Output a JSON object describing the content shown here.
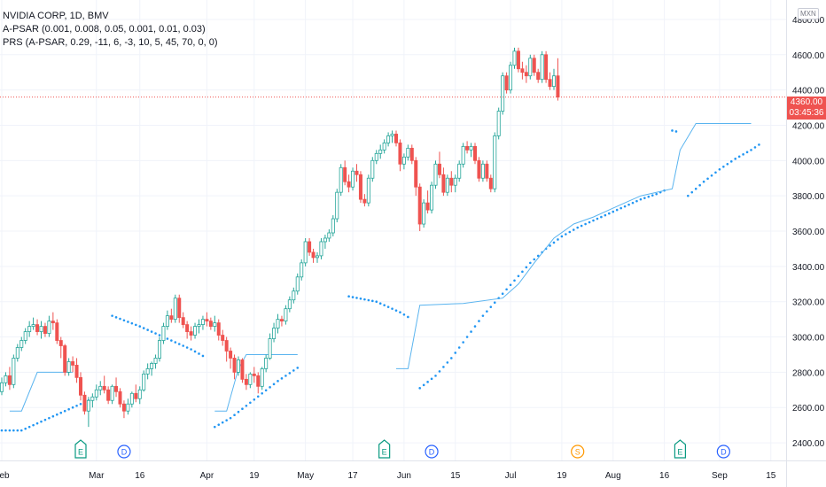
{
  "legend": {
    "symbol_line": "NVIDIA CORP, 1D, BMV",
    "indicator1": "A-PSAR (0.001, 0.008, 0.05, 0.001, 0.01, 0.03)",
    "indicator2": "PRS (A-PSAR, 0.29, -11, 6, -3, 10, 5, 45, 70, 0, 0)"
  },
  "currency_label": "MXN",
  "current_price": {
    "label": "4360.00",
    "countdown": "03:45:36"
  },
  "colors": {
    "up": "#26a69a",
    "down": "#ef5350",
    "psar": "#2196f3",
    "prs": "#5ab4ef",
    "event_earnings": "#089981",
    "event_dividend": "#2962ff",
    "event_split": "#ff9800"
  },
  "chart_data": {
    "type": "candlestick",
    "ylim": [
      2300,
      4880
    ],
    "yticks": [
      2400,
      2600,
      2800,
      3000,
      3200,
      3400,
      3600,
      3800,
      4000,
      4200,
      4400,
      4600,
      4800
    ],
    "ytick_labels": [
      "2400.00",
      "2600.00",
      "2800.00",
      "3000.00",
      "3200.00",
      "3400.00",
      "3600.00",
      "3800.00",
      "4000.00",
      "4200.00",
      "4400.00",
      "4600.00",
      "4800.00"
    ],
    "xtick_labels": [
      "Feb",
      "Mar",
      "16",
      "Apr",
      "19",
      "May",
      "17",
      "Jun",
      "15",
      "Jul",
      "19",
      "Aug",
      "16",
      "Sep",
      "15"
    ],
    "grid": true,
    "ohlc": [
      [
        2690,
        2770,
        2670,
        2740
      ],
      [
        2740,
        2800,
        2720,
        2780
      ],
      [
        2780,
        2830,
        2700,
        2730
      ],
      [
        2730,
        2900,
        2710,
        2880
      ],
      [
        2880,
        2960,
        2860,
        2940
      ],
      [
        2940,
        3000,
        2920,
        2980
      ],
      [
        2980,
        3050,
        2960,
        3030
      ],
      [
        3030,
        3090,
        3000,
        3060
      ],
      [
        3060,
        3110,
        3040,
        3070
      ],
      [
        3070,
        3100,
        3010,
        3030
      ],
      [
        3030,
        3090,
        2990,
        3060
      ],
      [
        3060,
        3080,
        3000,
        3020
      ],
      [
        3020,
        3120,
        3000,
        3090
      ],
      [
        3090,
        3140,
        3040,
        3080
      ],
      [
        3080,
        3100,
        2960,
        2980
      ],
      [
        2980,
        3000,
        2880,
        2950
      ],
      [
        2950,
        2960,
        2780,
        2800
      ],
      [
        2800,
        2880,
        2780,
        2860
      ],
      [
        2860,
        2890,
        2800,
        2840
      ],
      [
        2840,
        2880,
        2740,
        2770
      ],
      [
        2770,
        2800,
        2640,
        2670
      ],
      [
        2670,
        2690,
        2560,
        2580
      ],
      [
        2580,
        2660,
        2490,
        2640
      ],
      [
        2640,
        2680,
        2600,
        2660
      ],
      [
        2660,
        2730,
        2640,
        2700
      ],
      [
        2700,
        2750,
        2670,
        2720
      ],
      [
        2720,
        2780,
        2680,
        2700
      ],
      [
        2700,
        2720,
        2620,
        2640
      ],
      [
        2640,
        2730,
        2620,
        2720
      ],
      [
        2720,
        2770,
        2660,
        2690
      ],
      [
        2690,
        2710,
        2600,
        2620
      ],
      [
        2620,
        2640,
        2540,
        2580
      ],
      [
        2580,
        2650,
        2560,
        2620
      ],
      [
        2620,
        2690,
        2600,
        2680
      ],
      [
        2680,
        2730,
        2630,
        2650
      ],
      [
        2650,
        2720,
        2620,
        2700
      ],
      [
        2700,
        2810,
        2690,
        2790
      ],
      [
        2790,
        2850,
        2760,
        2820
      ],
      [
        2820,
        2860,
        2780,
        2850
      ],
      [
        2850,
        2900,
        2820,
        2880
      ],
      [
        2880,
        3000,
        2860,
        2980
      ],
      [
        2980,
        3080,
        2960,
        3060
      ],
      [
        3060,
        3150,
        3040,
        3120
      ],
      [
        3120,
        3160,
        3080,
        3100
      ],
      [
        3100,
        3240,
        3080,
        3220
      ],
      [
        3220,
        3240,
        3080,
        3110
      ],
      [
        3110,
        3140,
        3050,
        3070
      ],
      [
        3070,
        3090,
        2990,
        3030
      ],
      [
        3030,
        3060,
        2980,
        3010
      ],
      [
        3010,
        3080,
        2990,
        3060
      ],
      [
        3060,
        3100,
        3020,
        3070
      ],
      [
        3070,
        3120,
        3040,
        3100
      ],
      [
        3100,
        3140,
        3060,
        3090
      ],
      [
        3090,
        3110,
        3040,
        3060
      ],
      [
        3060,
        3120,
        3030,
        3080
      ],
      [
        3080,
        3100,
        2980,
        3010
      ],
      [
        3010,
        3040,
        2950,
        2980
      ],
      [
        2980,
        3000,
        2860,
        2920
      ],
      [
        2920,
        2940,
        2820,
        2880
      ],
      [
        2880,
        2900,
        2760,
        2800
      ],
      [
        2800,
        2890,
        2780,
        2870
      ],
      [
        2870,
        2880,
        2740,
        2760
      ],
      [
        2760,
        2790,
        2700,
        2730
      ],
      [
        2730,
        2800,
        2710,
        2790
      ],
      [
        2790,
        2830,
        2740,
        2780
      ],
      [
        2780,
        2800,
        2680,
        2720
      ],
      [
        2720,
        2830,
        2700,
        2820
      ],
      [
        2820,
        2900,
        2800,
        2880
      ],
      [
        2880,
        3020,
        2870,
        2990
      ],
      [
        2990,
        3080,
        2970,
        3050
      ],
      [
        3050,
        3130,
        3020,
        3100
      ],
      [
        3100,
        3120,
        3060,
        3090
      ],
      [
        3090,
        3180,
        3070,
        3160
      ],
      [
        3160,
        3230,
        3140,
        3210
      ],
      [
        3210,
        3280,
        3190,
        3260
      ],
      [
        3260,
        3360,
        3240,
        3340
      ],
      [
        3340,
        3440,
        3320,
        3420
      ],
      [
        3420,
        3560,
        3400,
        3540
      ],
      [
        3540,
        3560,
        3460,
        3480
      ],
      [
        3480,
        3500,
        3420,
        3450
      ],
      [
        3450,
        3480,
        3420,
        3460
      ],
      [
        3460,
        3560,
        3440,
        3540
      ],
      [
        3540,
        3580,
        3500,
        3560
      ],
      [
        3560,
        3610,
        3540,
        3590
      ],
      [
        3590,
        3690,
        3570,
        3670
      ],
      [
        3670,
        3840,
        3650,
        3820
      ],
      [
        3820,
        3980,
        3800,
        3960
      ],
      [
        3960,
        4000,
        3860,
        3880
      ],
      [
        3880,
        3920,
        3820,
        3850
      ],
      [
        3850,
        3960,
        3830,
        3940
      ],
      [
        3940,
        3980,
        3880,
        3920
      ],
      [
        3920,
        3940,
        3760,
        3780
      ],
      [
        3780,
        3810,
        3740,
        3760
      ],
      [
        3760,
        3920,
        3740,
        3900
      ],
      [
        3900,
        4020,
        3880,
        4000
      ],
      [
        4000,
        4060,
        3980,
        4040
      ],
      [
        4040,
        4090,
        4010,
        4060
      ],
      [
        4060,
        4120,
        4040,
        4100
      ],
      [
        4100,
        4160,
        4080,
        4140
      ],
      [
        4140,
        4170,
        4100,
        4150
      ],
      [
        4150,
        4170,
        4080,
        4100
      ],
      [
        4100,
        4120,
        3940,
        3980
      ],
      [
        3980,
        4040,
        3950,
        4020
      ],
      [
        4020,
        4090,
        4000,
        4070
      ],
      [
        4070,
        4090,
        3980,
        4000
      ],
      [
        4000,
        4020,
        3800,
        3850
      ],
      [
        3850,
        3870,
        3600,
        3640
      ],
      [
        3640,
        3780,
        3620,
        3760
      ],
      [
        3760,
        3830,
        3700,
        3720
      ],
      [
        3720,
        3880,
        3700,
        3860
      ],
      [
        3860,
        4000,
        3840,
        3980
      ],
      [
        3980,
        4050,
        3900,
        3920
      ],
      [
        3920,
        3960,
        3800,
        3820
      ],
      [
        3820,
        3920,
        3800,
        3900
      ],
      [
        3900,
        3940,
        3820,
        3860
      ],
      [
        3860,
        3920,
        3820,
        3900
      ],
      [
        3900,
        4000,
        3880,
        3980
      ],
      [
        3980,
        4100,
        3960,
        4080
      ],
      [
        4080,
        4110,
        4040,
        4060
      ],
      [
        4060,
        4100,
        4020,
        4080
      ],
      [
        4080,
        4100,
        3980,
        4000
      ],
      [
        4000,
        4020,
        3880,
        3900
      ],
      [
        3900,
        4000,
        3880,
        3980
      ],
      [
        3980,
        4000,
        3880,
        3900
      ],
      [
        3900,
        3920,
        3820,
        3840
      ],
      [
        3840,
        4160,
        3820,
        4140
      ],
      [
        4140,
        4300,
        4120,
        4280
      ],
      [
        4280,
        4500,
        4260,
        4480
      ],
      [
        4480,
        4500,
        4380,
        4400
      ],
      [
        4400,
        4560,
        4380,
        4540
      ],
      [
        4540,
        4640,
        4520,
        4620
      ],
      [
        4620,
        4640,
        4500,
        4520
      ],
      [
        4520,
        4560,
        4460,
        4500
      ],
      [
        4500,
        4540,
        4440,
        4480
      ],
      [
        4480,
        4600,
        4460,
        4580
      ],
      [
        4580,
        4600,
        4480,
        4500
      ],
      [
        4500,
        4520,
        4440,
        4460
      ],
      [
        4460,
        4620,
        4440,
        4600
      ],
      [
        4600,
        4620,
        4440,
        4460
      ],
      [
        4460,
        4500,
        4400,
        4420
      ],
      [
        4420,
        4520,
        4400,
        4480
      ],
      [
        4480,
        4580,
        4340,
        4360
      ]
    ],
    "psar": [
      [
        0,
        2470
      ],
      [
        5,
        2470
      ],
      [
        10,
        2520
      ],
      [
        15,
        2570
      ],
      [
        20,
        2620
      ],
      [
        24,
        2660
      ],
      [
        28,
        3120
      ],
      [
        35,
        3060
      ],
      [
        42,
        2990
      ],
      [
        48,
        2930
      ],
      [
        52,
        2880
      ],
      [
        54,
        2490
      ],
      [
        58,
        2540
      ],
      [
        62,
        2610
      ],
      [
        66,
        2680
      ],
      [
        70,
        2750
      ],
      [
        76,
        2840
      ],
      [
        88,
        3230
      ],
      [
        95,
        3200
      ],
      [
        101,
        3140
      ],
      [
        104,
        3100
      ],
      [
        106,
        2710
      ],
      [
        110,
        2780
      ],
      [
        114,
        2880
      ],
      [
        118,
        3000
      ],
      [
        122,
        3120
      ],
      [
        126,
        3220
      ],
      [
        130,
        3320
      ],
      [
        134,
        3420
      ],
      [
        138,
        3500
      ],
      [
        142,
        3570
      ],
      [
        146,
        3620
      ],
      [
        150,
        3660
      ],
      [
        154,
        3700
      ],
      [
        158,
        3740
      ],
      [
        162,
        3780
      ],
      [
        166,
        3810
      ],
      [
        169,
        3840
      ],
      [
        170,
        4170
      ],
      [
        172,
        4160
      ],
      [
        174,
        3800
      ],
      [
        178,
        3880
      ],
      [
        182,
        3950
      ],
      [
        186,
        4010
      ],
      [
        190,
        4060
      ],
      [
        192,
        4090
      ]
    ],
    "prs": [
      [
        [
          2,
          2580
        ],
        [
          5,
          2580
        ],
        [
          9,
          2800
        ],
        [
          18,
          2800
        ]
      ],
      [
        [
          54,
          2580
        ],
        [
          57,
          2580
        ],
        [
          60,
          2820
        ],
        [
          62,
          2900
        ],
        [
          75,
          2900
        ]
      ],
      [
        [
          100,
          2820
        ],
        [
          103,
          2820
        ],
        [
          106,
          3180
        ],
        [
          117,
          3190
        ],
        [
          127,
          3220
        ],
        [
          131,
          3300
        ],
        [
          135,
          3420
        ],
        [
          140,
          3560
        ],
        [
          145,
          3640
        ],
        [
          150,
          3680
        ],
        [
          154,
          3720
        ],
        [
          158,
          3760
        ],
        [
          162,
          3800
        ],
        [
          166,
          3820
        ],
        [
          170,
          3840
        ],
        [
          172,
          4060
        ],
        [
          176,
          4210
        ],
        [
          181,
          4210
        ],
        [
          185,
          4210
        ],
        [
          190,
          4210
        ]
      ]
    ],
    "current_price": 4360,
    "events": [
      {
        "type": "earnings",
        "label": "E",
        "x": 20
      },
      {
        "type": "dividend",
        "label": "D",
        "x": 31
      },
      {
        "type": "earnings",
        "label": "E",
        "x": 97
      },
      {
        "type": "dividend",
        "label": "D",
        "x": 109
      },
      {
        "type": "split",
        "label": "S",
        "x": 146
      },
      {
        "type": "earnings",
        "label": "E",
        "x": 172
      },
      {
        "type": "dividend",
        "label": "D",
        "x": 183
      }
    ]
  }
}
